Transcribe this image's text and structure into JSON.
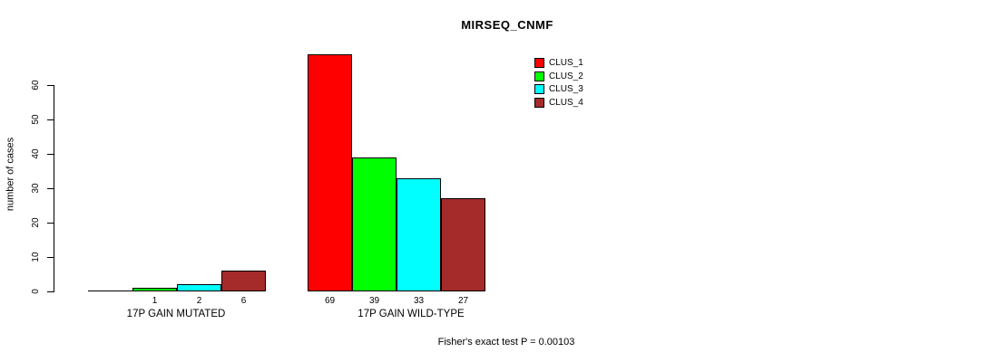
{
  "title": "MIRSEQ_CNMF",
  "y_axis": {
    "label": "number of cases"
  },
  "footer": "Fisher's exact test P = 0.00103",
  "chart_data": {
    "type": "bar",
    "title": "MIRSEQ_CNMF",
    "xlabel": "",
    "ylabel": "number of cases",
    "ylim": [
      0,
      69
    ],
    "yticks": [
      0,
      10,
      20,
      30,
      40,
      50,
      60
    ],
    "grid": false,
    "legend_position": "top-right",
    "categories": [
      "17P GAIN MUTATED",
      "17P GAIN WILD-TYPE"
    ],
    "series": [
      {
        "name": "CLUS_1",
        "color": "#FF0000",
        "values": [
          0,
          69
        ]
      },
      {
        "name": "CLUS_2",
        "color": "#00FF00",
        "values": [
          1,
          39
        ]
      },
      {
        "name": "CLUS_3",
        "color": "#00FFFF",
        "values": [
          2,
          33
        ]
      },
      {
        "name": "CLUS_4",
        "color": "#A52A2A",
        "values": [
          6,
          27
        ]
      }
    ],
    "bar_value_labels": [
      [
        "",
        "1",
        "2",
        "6"
      ],
      [
        "69",
        "39",
        "33",
        "27"
      ]
    ],
    "annotation": "Fisher's exact test P = 0.00103"
  }
}
